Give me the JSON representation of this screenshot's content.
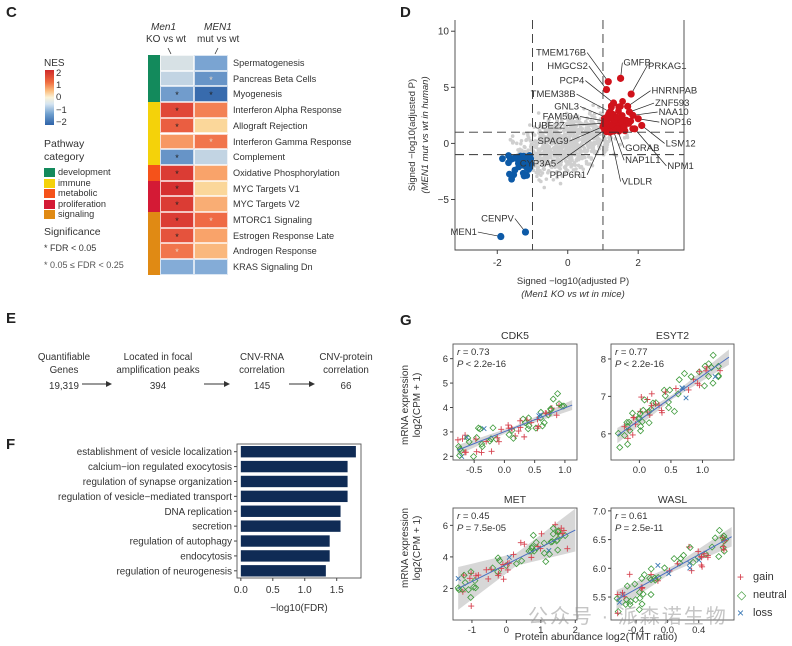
{
  "panels": {
    "C": {
      "label": "C",
      "col_headers": [
        {
          "line1": "Men1",
          "line2": "KO vs wt"
        },
        {
          "line1": "MEN1",
          "line2": "mut vs wt"
        }
      ],
      "legend": {
        "nes_title": "NES",
        "nes_ticks": [
          "2",
          "1",
          "0",
          "−1",
          "−2"
        ],
        "category_title_1": "Pathway",
        "category_title_2": "category",
        "categories": [
          {
            "name": "development",
            "color": "#138a5c"
          },
          {
            "name": "immune",
            "color": "#f4d20a"
          },
          {
            "name": "metabolic",
            "color": "#f5521a"
          },
          {
            "name": "proliferation",
            "color": "#d41a35"
          },
          {
            "name": "signaling",
            "color": "#e08a14"
          }
        ],
        "significance_title": "Significance",
        "sig_items": [
          "* FDR < 0.05",
          "* 0.05 ≤ FDR < 0.25"
        ]
      },
      "rows": [
        {
          "pathway": "Spermatogenesis",
          "category": "development",
          "nes": [
            -0.3,
            -1.2
          ],
          "sig": [
            "",
            ""
          ]
        },
        {
          "pathway": "Pancreas Beta Cells",
          "category": "development",
          "nes": [
            -0.5,
            -1.4
          ],
          "sig": [
            "",
            "light"
          ]
        },
        {
          "pathway": "Myogenesis",
          "category": "development",
          "nes": [
            -1.3,
            -1.9
          ],
          "sig": [
            "strong",
            "strong"
          ]
        },
        {
          "pathway": "Interferon Alpha Response",
          "category": "immune",
          "nes": [
            1.8,
            1.3
          ],
          "sig": [
            "strong",
            ""
          ]
        },
        {
          "pathway": "Allograft Rejection",
          "category": "immune",
          "nes": [
            1.6,
            0.5
          ],
          "sig": [
            "strong",
            ""
          ]
        },
        {
          "pathway": "Interferon Gamma Response",
          "category": "immune",
          "nes": [
            1.1,
            1.4
          ],
          "sig": [
            "",
            "light"
          ]
        },
        {
          "pathway": "Complement",
          "category": "immune",
          "nes": [
            -1.4,
            -0.5
          ],
          "sig": [
            "strong",
            ""
          ]
        },
        {
          "pathway": "Oxidative Phosphorylation",
          "category": "metabolic",
          "nes": [
            1.9,
            1.0
          ],
          "sig": [
            "strong",
            ""
          ]
        },
        {
          "pathway": "MYC Targets V1",
          "category": "proliferation",
          "nes": [
            2.0,
            0.5
          ],
          "sig": [
            "strong",
            ""
          ]
        },
        {
          "pathway": "MYC Targets V2",
          "category": "proliferation",
          "nes": [
            1.9,
            0.9
          ],
          "sig": [
            "strong",
            ""
          ]
        },
        {
          "pathway": "MTORC1 Signaling",
          "category": "signaling",
          "nes": [
            1.9,
            1.5
          ],
          "sig": [
            "strong",
            "light"
          ]
        },
        {
          "pathway": "Estrogen Response Late",
          "category": "signaling",
          "nes": [
            1.7,
            1.0
          ],
          "sig": [
            "strong",
            ""
          ]
        },
        {
          "pathway": "Androgen Response",
          "category": "signaling",
          "nes": [
            1.4,
            0.8
          ],
          "sig": [
            "light",
            ""
          ]
        },
        {
          "pathway": "KRAS Signaling Dn",
          "category": "signaling",
          "nes": [
            -1.1,
            -1.1
          ],
          "sig": [
            "",
            ""
          ]
        }
      ]
    },
    "D": {
      "label": "D",
      "chart_ref": 0
    },
    "E": {
      "label": "E",
      "steps": [
        {
          "line1": "Quantifiable",
          "line2": "Genes",
          "count": "19,319"
        },
        {
          "line1": "Located in focal",
          "line2": "amplification peaks",
          "count": "394"
        },
        {
          "line1": "CNV-RNA",
          "line2": "correlation",
          "count": "145"
        },
        {
          "line1": "CNV-protein",
          "line2": "correlation",
          "count": "66"
        }
      ]
    },
    "F": {
      "label": "F",
      "chart_ref": 1
    },
    "G": {
      "label": "G",
      "ylabel_1": "mRNA expression",
      "ylabel_2": "log2(CPM + 1)",
      "xlabel": "Protein abundance log2(TMT ratio)",
      "legend": [
        {
          "name": "gain",
          "symbol": "+",
          "color": "#d6424f"
        },
        {
          "name": "neutral",
          "symbol": "◇",
          "color": "#3f9b3c"
        },
        {
          "name": "loss",
          "symbol": "×",
          "color": "#3a78b5"
        }
      ]
    }
  },
  "watermark": "公众号 · 派森诺生物",
  "chart_data": [
    {
      "type": "scatter",
      "title": "",
      "xlabel": "Signed −log10(adjusted P)",
      "xlabel_sub": "(Men1 KO vs wt in mice)",
      "ylabel": "Signed −log10(adjusted P)",
      "ylabel_sub": "(MEN1 mut vs wt in human)",
      "xlim": [
        -3.2,
        3.3
      ],
      "ylim": [
        -9.5,
        11
      ],
      "xticks": [
        "-2",
        "0",
        "2"
      ],
      "xtick_values": [
        -2,
        0,
        2
      ],
      "yticks": [
        "10",
        "5",
        "0",
        "−5"
      ],
      "ytick_values": [
        10,
        5,
        0,
        -5
      ],
      "thresholds": {
        "x": [
          -1,
          1
        ],
        "y": [
          -1,
          1
        ]
      },
      "colors": {
        "up": "#d0121b",
        "down": "#0d5aa7",
        "background": "#cfcfcf"
      },
      "labeled_points": [
        {
          "gene": "MEN1",
          "x": -1.9,
          "y": -8.3,
          "group": "down"
        },
        {
          "gene": "CENPV",
          "x": -1.2,
          "y": -7.9,
          "group": "down"
        },
        {
          "gene": "TMEM176B",
          "x": 1.15,
          "y": 5.5,
          "group": "up"
        },
        {
          "gene": "HMGCS2",
          "x": 1.1,
          "y": 4.8,
          "group": "up"
        },
        {
          "gene": "GMFB",
          "x": 1.5,
          "y": 5.8,
          "group": "up"
        },
        {
          "gene": "PRKAG1",
          "x": 1.8,
          "y": 4.4,
          "group": "up"
        },
        {
          "gene": "PCP4",
          "x": 1.3,
          "y": 3.6,
          "group": "up"
        },
        {
          "gene": "HNRNPAB",
          "x": 1.7,
          "y": 3.3,
          "group": "up"
        },
        {
          "gene": "TMEM38B",
          "x": 1.2,
          "y": 2.8,
          "group": "up"
        },
        {
          "gene": "ZNF593",
          "x": 1.75,
          "y": 2.8,
          "group": "up"
        },
        {
          "gene": "GNL3",
          "x": 1.1,
          "y": 2.3,
          "group": "up"
        },
        {
          "gene": "NAA10",
          "x": 1.85,
          "y": 2.5,
          "group": "up"
        },
        {
          "gene": "FAM50A",
          "x": 1.05,
          "y": 2.0,
          "group": "up"
        },
        {
          "gene": "NOP16",
          "x": 2.0,
          "y": 2.2,
          "group": "up"
        },
        {
          "gene": "UBE2Z",
          "x": 1.05,
          "y": 1.8,
          "group": "up"
        },
        {
          "gene": "SPAG9",
          "x": 1.0,
          "y": 1.5,
          "group": "up"
        },
        {
          "gene": "LSM12",
          "x": 2.1,
          "y": 1.6,
          "group": "up"
        },
        {
          "gene": "GORAB",
          "x": 1.4,
          "y": 1.3,
          "group": "up"
        },
        {
          "gene": "CYP3A5",
          "x": 1.05,
          "y": 1.2,
          "group": "up"
        },
        {
          "gene": "NAP1L1",
          "x": 1.3,
          "y": 1.1,
          "group": "up"
        },
        {
          "gene": "NPM1",
          "x": 1.9,
          "y": 1.3,
          "group": "up"
        },
        {
          "gene": "PPP6R1",
          "x": 1.1,
          "y": 1.05,
          "group": "up"
        },
        {
          "gene": "VLDLR",
          "x": 1.2,
          "y": 1.0,
          "group": "up"
        }
      ],
      "label_positions": {
        "MEN1": [
          -2.55,
          -7.9
        ],
        "CENPV": [
          -1.5,
          -6.7
        ],
        "TMEM176B": [
          0.55,
          8.1
        ],
        "HMGCS2": [
          0.6,
          6.9
        ],
        "GMFB": [
          1.55,
          7.2
        ],
        "PRKAG1": [
          2.25,
          6.9
        ],
        "PCP4": [
          0.5,
          5.6
        ],
        "HNRNPAB": [
          2.35,
          4.7
        ],
        "TMEM38B": [
          0.25,
          4.4
        ],
        "ZNF593": [
          2.45,
          3.6
        ],
        "GNL3": [
          0.35,
          3.3
        ],
        "NAA10": [
          2.55,
          2.8
        ],
        "FAM50A": [
          0.35,
          2.4
        ],
        "NOP16": [
          2.6,
          1.9
        ],
        "UBE2Z": [
          -0.05,
          1.6
        ],
        "SPAG9": [
          0.05,
          0.2
        ],
        "LSM12": [
          2.75,
          0.0
        ],
        "GORAB": [
          1.6,
          -0.4
        ],
        "CYP3A5": [
          -0.3,
          -1.8
        ],
        "NAP1L1": [
          1.6,
          -1.5
        ],
        "NPM1": [
          2.8,
          -2.0
        ],
        "PPP6R1": [
          0.55,
          -2.8
        ],
        "VLDLR": [
          1.5,
          -3.4
        ]
      }
    },
    {
      "type": "bar",
      "orientation": "horizontal",
      "categories": [
        "establishment of vesicle localization",
        "calcium−ion regulated exocytosis",
        "regulation of synapse organization",
        "regulation of vesicle−mediated transport",
        "DNA replication",
        "secretion",
        "regulation of autophagy",
        "endocytosis",
        "regulation of neurogenesis"
      ],
      "values": [
        1.8,
        1.67,
        1.67,
        1.67,
        1.56,
        1.56,
        1.39,
        1.39,
        1.33
      ],
      "xlabel": "−log10(FDR)",
      "xlim": [
        -0.06,
        1.88
      ],
      "xticks": [
        "0.0",
        "0.5",
        "1.0",
        "1.5"
      ],
      "xtick_values": [
        0,
        0.5,
        1.0,
        1.5
      ],
      "bar_color": "#0f2b55"
    },
    {
      "type": "scatter",
      "title": "CDK5",
      "annotation_r": "= 0.73",
      "annotation_p": "< 2.2e-16",
      "xlim": [
        -0.85,
        1.2
      ],
      "ylim": [
        1.85,
        6.6
      ],
      "xticks": [
        "-0.5",
        "0.0",
        "0.5",
        "1.0"
      ],
      "xtick_values": [
        -0.5,
        0,
        0.5,
        1.0
      ],
      "yticks": [
        "2",
        "3",
        "4",
        "5",
        "6"
      ],
      "ytick_values": [
        2,
        3,
        4,
        5,
        6
      ],
      "fit": {
        "x0": -0.78,
        "y0": 2.25,
        "x1": 1.12,
        "y1": 4.1,
        "ci": 0.12
      }
    },
    {
      "type": "scatter",
      "title": "ESYT2",
      "annotation_r": "= 0.77",
      "annotation_p": "< 2.2e-16",
      "xlim": [
        -0.45,
        1.5
      ],
      "ylim": [
        5.3,
        8.4
      ],
      "xticks": [
        "0.0",
        "0.5",
        "1.0"
      ],
      "xtick_values": [
        0,
        0.5,
        1.0
      ],
      "yticks": [
        "6",
        "7",
        "8"
      ],
      "ytick_values": [
        6,
        7,
        8
      ],
      "fit": {
        "x0": -0.35,
        "y0": 5.95,
        "x1": 1.42,
        "y1": 8.05,
        "ci": 0.12
      }
    },
    {
      "type": "scatter",
      "title": "MET",
      "annotation_r": "= 0.45",
      "annotation_p": "= 7.5e-05",
      "xlim": [
        -1.55,
        2.05
      ],
      "ylim": [
        0.0,
        7.1
      ],
      "xticks": [
        "-1",
        "0",
        "1",
        "2"
      ],
      "xtick_values": [
        -1,
        0,
        1,
        2
      ],
      "yticks": [
        "2",
        "4",
        "6"
      ],
      "ytick_values": [
        2,
        4,
        6
      ],
      "fit": {
        "x0": -1.4,
        "y0": 2.0,
        "x1": 2.0,
        "y1": 5.7,
        "ci": 0.8
      }
    },
    {
      "type": "scatter",
      "title": "WASL",
      "annotation_r": "= 0.61",
      "annotation_p": "= 2.5e-11",
      "xlim": [
        -0.72,
        0.85
      ],
      "ylim": [
        5.1,
        7.05
      ],
      "xticks": [
        "-0.4",
        "0.0",
        "0.4"
      ],
      "xtick_values": [
        -0.4,
        0,
        0.4
      ],
      "yticks": [
        "5.5",
        "6.0",
        "6.5",
        "7.0"
      ],
      "ytick_values": [
        5.5,
        6.0,
        6.5,
        7.0
      ],
      "fit": {
        "x0": -0.65,
        "y0": 5.45,
        "x1": 0.82,
        "y1": 6.55,
        "ci": 0.1
      }
    }
  ]
}
